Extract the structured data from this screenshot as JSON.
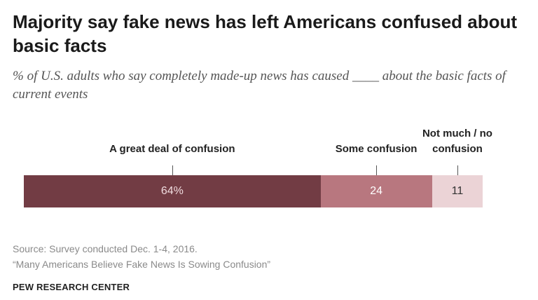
{
  "header": {
    "title": "Majority say fake news has left Americans confused about basic facts",
    "subtitle": "% of U.S. adults who say completely made-up news has caused ____ about the basic facts of current events"
  },
  "chart_data": {
    "type": "bar",
    "orientation": "horizontal-stacked",
    "title": "Majority say fake news has left Americans confused about basic facts",
    "subtitle": "% of U.S. adults who say completely made-up news has caused ____ about the basic facts of current events",
    "xlabel": "",
    "ylabel": "",
    "xlim": [
      0,
      100
    ],
    "segments": [
      {
        "name": "A great deal of confusion",
        "value": 64,
        "label": "64%",
        "color": "#723c44",
        "text_color": "#f0dcdf"
      },
      {
        "name": "Some confusion",
        "value": 24,
        "label": "24",
        "color": "#b8777f",
        "text_color": "#ffffff"
      },
      {
        "name": "Not much / no confusion",
        "value": 11,
        "label": "11",
        "color": "#ebd3d6",
        "text_color": "#333333"
      }
    ],
    "legend_placement": "above"
  },
  "footer": {
    "source": "Source: Survey conducted Dec. 1-4, 2016.",
    "report": "“Many Americans Believe Fake News Is Sowing Confusion”",
    "brand": "PEW RESEARCH CENTER"
  }
}
